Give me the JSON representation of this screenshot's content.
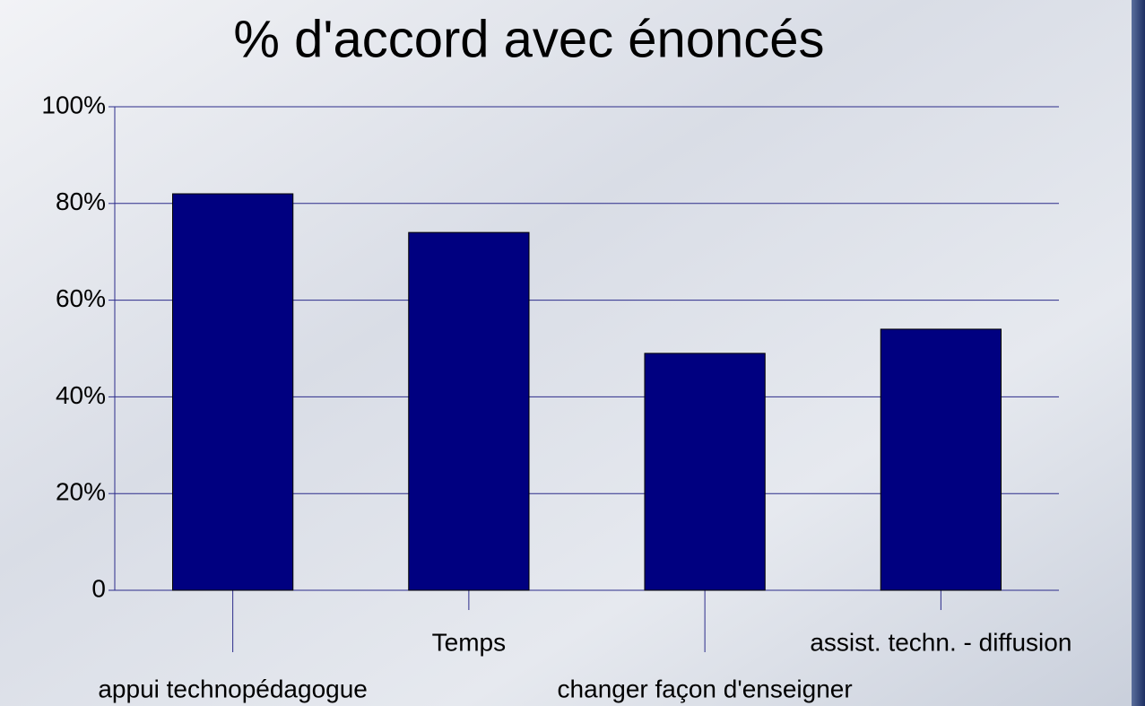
{
  "chart_data": {
    "type": "bar",
    "title": "% d'accord avec énoncés",
    "categories": [
      "appui technopédagogue",
      "Temps",
      "changer façon d'enseigner",
      "assist. techn. - diffusion"
    ],
    "values": [
      82,
      74,
      49,
      54
    ],
    "color": "#000080",
    "ylim": [
      0,
      100
    ],
    "yticks": [
      0,
      {
        "value": 20,
        "label": "20%"
      },
      {
        "value": 40,
        "label": "40%"
      },
      {
        "value": 60,
        "label": "60%"
      },
      {
        "value": 80,
        "label": "80%"
      },
      {
        "value": 100,
        "label": "100%"
      }
    ],
    "grid": true
  }
}
